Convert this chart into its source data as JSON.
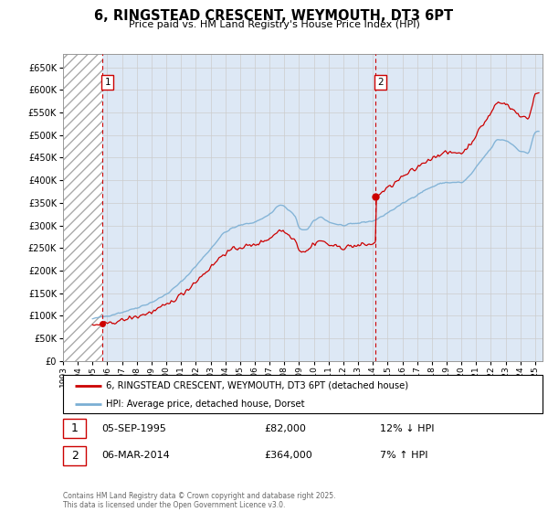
{
  "title": "6, RINGSTEAD CRESCENT, WEYMOUTH, DT3 6PT",
  "subtitle": "Price paid vs. HM Land Registry's House Price Index (HPI)",
  "ylim": [
    0,
    680000
  ],
  "xlim_start": 1993,
  "xlim_end": 2025.5,
  "yticks": [
    0,
    50000,
    100000,
    150000,
    200000,
    250000,
    300000,
    350000,
    400000,
    450000,
    500000,
    550000,
    600000,
    650000
  ],
  "ytick_labels": [
    "£0",
    "£50K",
    "£100K",
    "£150K",
    "£200K",
    "£250K",
    "£300K",
    "£350K",
    "£400K",
    "£450K",
    "£500K",
    "£550K",
    "£600K",
    "£650K"
  ],
  "transaction1_date": 1995.67,
  "transaction1_price": 82000,
  "transaction1_date_str": "05-SEP-1995",
  "transaction1_price_str": "£82,000",
  "transaction1_hpi": "12% ↓ HPI",
  "transaction2_date": 2014.17,
  "transaction2_price": 364000,
  "transaction2_date_str": "06-MAR-2014",
  "transaction2_price_str": "£364,000",
  "transaction2_hpi": "7% ↑ HPI",
  "legend_property": "6, RINGSTEAD CRESCENT, WEYMOUTH, DT3 6PT (detached house)",
  "legend_hpi": "HPI: Average price, detached house, Dorset",
  "footer": "Contains HM Land Registry data © Crown copyright and database right 2025.\nThis data is licensed under the Open Government Licence v3.0.",
  "property_color": "#cc0000",
  "hpi_color": "#7bafd4",
  "grid_color": "#cccccc",
  "bg_color": "#dde8f5",
  "hatch_color": "#bbbbbb"
}
